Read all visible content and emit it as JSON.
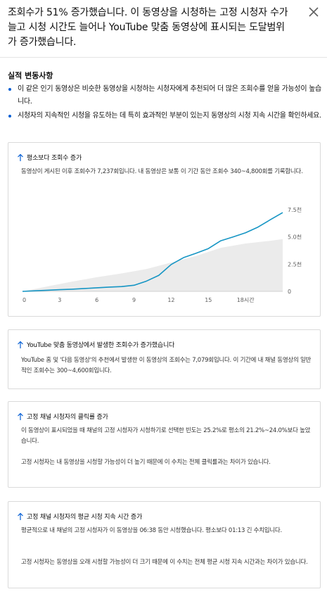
{
  "header": {
    "title": "조회수가 51% 증가했습니다. 이 동영상을 시청하는 고정 시청자 수가 늘고 시청 시간도 늘어나 YouTube 맞춤 동영상에 표시되는 도달범위가 증가했습니다."
  },
  "changes": {
    "title": "실적 변동사항",
    "items": [
      "이 같은 인기 동영상은 비슷한 동영상을 시청하는 시청자에게 추천되어 더 많은 조회수를 얻을 가능성이 높습니다.",
      "시청자의 지속적인 시청을 유도하는 데 특히 효과적인 부분이 있는지 동영상의 시청 지속 시간을 확인하세요."
    ]
  },
  "cards": [
    {
      "title": "평소보다 조회수 증가",
      "body": "동영상이 게시된 이후 조회수가 7,237회입니다. 내 동영상은 보통 이 기간 동안 조회수 340~4,800회를 기록합니다."
    },
    {
      "title": "YouTube 맞춤 동영상에서 발생한 조회수가 증가했습니다",
      "body": "YouTube 홈 및 '다음 동영상'의 추천에서 발생한 이 동영상의 조회수는 7,079회입니다. 이 기간에 내 채널 동영상의 일반적인 조회수는 300~4,600회입니다."
    },
    {
      "title": "고정 채널 시청자의 클릭률 증가",
      "body1": "이 동영상이 표시되었을 때 채널의 고정 시청자가 시청하기로 선택한 빈도는 25.2%로 평소의 21.2%~24.0%보다 높았습니다.",
      "body2": "고정 시청자는 내 동영상을 시청할 가능성이 더 높기 때문에 이 수치는 전체 클릭률과는 차이가 있습니다."
    },
    {
      "title": "고정 채널 시청자의 평균 시청 지속 시간 증가",
      "body1": "평균적으로 내 채널의 고정 시청자가 이 동영상을 06:38 동안 시청했습니다. 평소보다 01:13 긴 수치입니다.",
      "body2": "고정 시청자는 동영상을 오래 시청할 가능성이 더 크기 때문에 이 수치는 전체 평균 시청 지속 시간과는 차이가 있습니다."
    }
  ],
  "chart_data": {
    "type": "area",
    "x_ticks": [
      "0",
      "3",
      "6",
      "9",
      "12",
      "15",
      "18시간"
    ],
    "y_ticks": [
      "0",
      "2.5천",
      "5.0천",
      "7.5천"
    ],
    "xlim": [
      0,
      21
    ],
    "ylim": [
      0,
      7500
    ],
    "line": {
      "x": [
        0,
        1,
        2,
        3,
        4,
        5,
        6,
        7,
        8,
        9,
        10,
        11,
        12,
        13,
        14,
        15,
        16,
        17,
        18,
        19,
        20,
        21
      ],
      "y": [
        0,
        50,
        100,
        160,
        200,
        260,
        330,
        390,
        440,
        560,
        940,
        1470,
        2470,
        3100,
        3500,
        3930,
        4650,
        5000,
        5380,
        5900,
        6580,
        7237
      ]
    },
    "typical_band": {
      "x": [
        0,
        2,
        4,
        6,
        8,
        10,
        12,
        14,
        16,
        18,
        20,
        21
      ],
      "upper": [
        0,
        450,
        900,
        1300,
        1650,
        2050,
        2650,
        3250,
        4000,
        4400,
        4650,
        4800
      ]
    },
    "colors": {
      "line": "#1595c4",
      "band": "#ebebeb"
    }
  }
}
